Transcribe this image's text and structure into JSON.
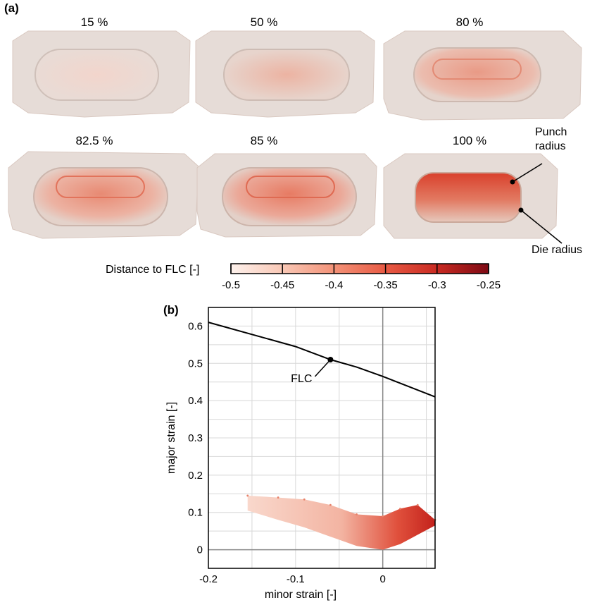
{
  "panel_a": {
    "label": "(a)",
    "stages": [
      "15 %",
      "50 %",
      "80 %",
      "82.5 %",
      "85 %",
      "100 %"
    ],
    "annotations": {
      "punch": "Punch\nradius",
      "die": "Die radius"
    },
    "colorbar": {
      "title": "Distance to FLC [-]",
      "ticks": [
        "-0.5",
        "-0.45",
        "-0.4",
        "-0.35",
        "-0.3",
        "-0.25"
      ],
      "colors": [
        "#fdf1ec",
        "#f9c8b6",
        "#f39278",
        "#e85a44",
        "#c92a22",
        "#7d0a14"
      ]
    }
  },
  "panel_b": {
    "label": "(b)",
    "flc_label": "FLC"
  },
  "chart_data": {
    "type": "scatter",
    "xlabel": "minor strain [-]",
    "ylabel": "major strain [-]",
    "xlim": [
      -0.2,
      0.06
    ],
    "ylim": [
      -0.05,
      0.65
    ],
    "x_ticks": [
      -0.2,
      -0.1,
      0
    ],
    "x_tick_labels": [
      "-0.2",
      "-0.1",
      "0"
    ],
    "y_ticks": [
      0,
      0.1,
      0.2,
      0.3,
      0.4,
      0.5,
      0.6
    ],
    "y_tick_labels": [
      "0",
      "0.1",
      "0.2",
      "0.3",
      "0.4",
      "0.5",
      "0.6"
    ],
    "grid": true,
    "series": [
      {
        "name": "FLC",
        "type": "line",
        "x": [
          -0.2,
          -0.1,
          -0.06,
          -0.03,
          0,
          0.06
        ],
        "y": [
          0.61,
          0.545,
          0.51,
          0.49,
          0.465,
          0.41
        ]
      },
      {
        "type": "scatter-band",
        "x": [
          -0.155,
          -0.12,
          -0.09,
          -0.06,
          -0.03,
          0,
          0.02,
          0.04,
          0.06
        ],
        "y_low": [
          0.105,
          0.08,
          0.06,
          0.035,
          0.01,
          0.0,
          0.015,
          0.04,
          0.065
        ],
        "y_high": [
          0.145,
          0.14,
          0.135,
          0.12,
          0.095,
          0.09,
          0.11,
          0.12,
          0.08
        ]
      }
    ],
    "marker": {
      "x": -0.06,
      "y": 0.51
    }
  }
}
